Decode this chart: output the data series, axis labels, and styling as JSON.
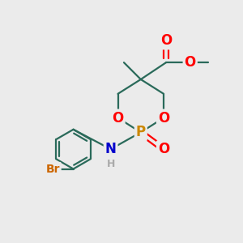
{
  "bg_color": "#ebebeb",
  "atom_colors": {
    "O": "#ff0000",
    "P": "#cc8800",
    "N": "#0000cc",
    "Br": "#cc6600",
    "H": "#aaaaaa",
    "C": "#2a6a5a"
  },
  "line_width": 1.6,
  "font_size_atom": 12,
  "font_size_small": 10
}
